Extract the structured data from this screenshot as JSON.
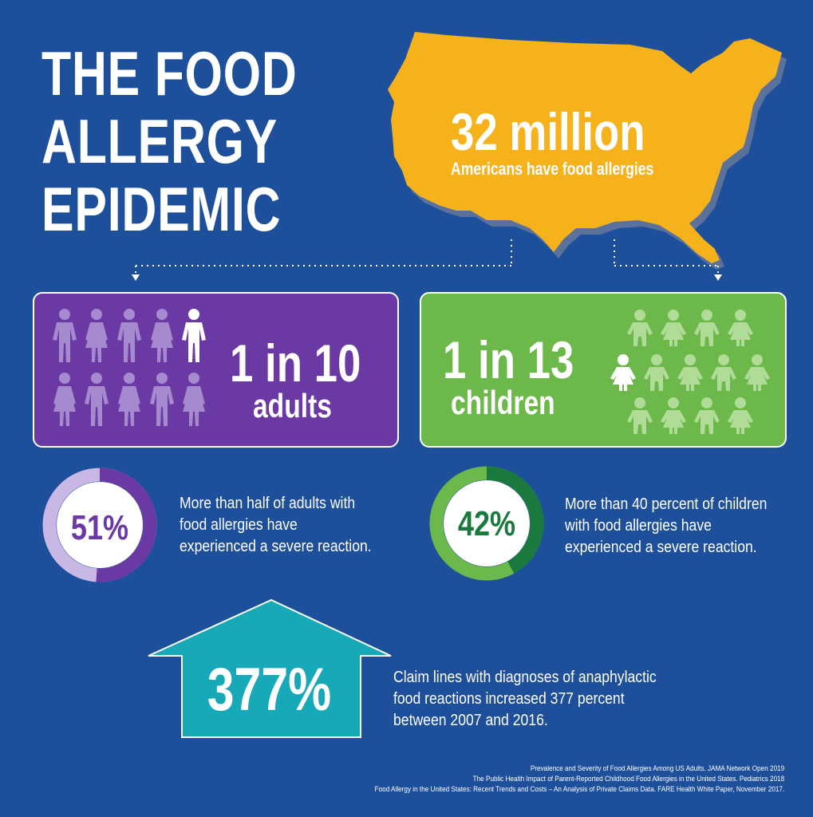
{
  "title": {
    "line1": "THE FOOD",
    "line2": "ALLERGY",
    "line3": "EPIDEMIC"
  },
  "map": {
    "number": "32 million",
    "caption": "Americans have food allergies"
  },
  "adults": {
    "ratio": "1 in 10",
    "label": "adults",
    "percent": "51%",
    "percent_value": 51,
    "desc_lines": [
      "More than half of adults with",
      "food allergies have",
      "experienced a severe reaction."
    ]
  },
  "children": {
    "ratio": "1 in 13",
    "label": "children",
    "percent": "42%",
    "percent_value": 42,
    "desc_lines": [
      "More than 40 percent of children",
      "with food allergies have",
      "experienced a severe reaction."
    ]
  },
  "claims": {
    "value": "377%",
    "desc_lines": [
      "Claim lines with diagnoses of anaphylactic",
      "food reactions increased 377 percent",
      "between 2007 and 2016."
    ]
  },
  "sources": [
    "Prevalence and Severity of Food Allergies Among US Adults. JAMA Network Open 2019",
    "The Public Health Impact of Parent-Reported Childhood Food Allergies in the United States. Pediatrics 2018",
    "Food Allergy in the United States: Recent Trends and Costs – An Analysis of Private Claims Data. FARE Health White Paper, November 2017."
  ],
  "colors": {
    "background": "#1d4f9b",
    "map": "#f6b21b",
    "adults": "#6a39a4",
    "adults_light": "#a68ad0",
    "children": "#6cb84a",
    "children_light": "#b0dc98",
    "children_dark": "#1a7a3e",
    "arrow": "#17a9b8"
  },
  "icons": {
    "map": "usa-map-icon",
    "adult": "person-icon",
    "child": "child-icon",
    "arrow": "up-arrow-icon"
  }
}
